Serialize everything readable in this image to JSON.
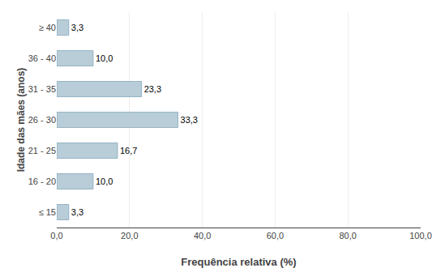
{
  "chart_data": {
    "type": "bar",
    "orientation": "horizontal",
    "xlabel": "Frequência relativa (%)",
    "ylabel": "Idade das mães (anos)",
    "categories": [
      "≤ 15",
      "16 - 20",
      "21 - 25",
      "26 - 30",
      "31 - 35",
      "36 - 40",
      "≥ 40"
    ],
    "values": [
      3.3,
      10.0,
      16.7,
      33.3,
      23.3,
      10.0,
      3.3
    ],
    "value_labels": [
      "3,3",
      "10,0",
      "16,7",
      "33,3",
      "23,3",
      "10,0",
      "3,3"
    ],
    "color": "#b8cdd8",
    "xlim": [
      0,
      100
    ],
    "xticks": [
      {
        "value": 0.0,
        "label": "0,0"
      },
      {
        "value": 20.0,
        "label": "20,0"
      },
      {
        "value": 40.0,
        "label": "40,0"
      },
      {
        "value": 60.0,
        "label": "60,0"
      },
      {
        "value": 80.0,
        "label": "80,0"
      },
      {
        "value": 100.0,
        "label": "100,0"
      }
    ],
    "grid": true,
    "data_labels": true
  }
}
